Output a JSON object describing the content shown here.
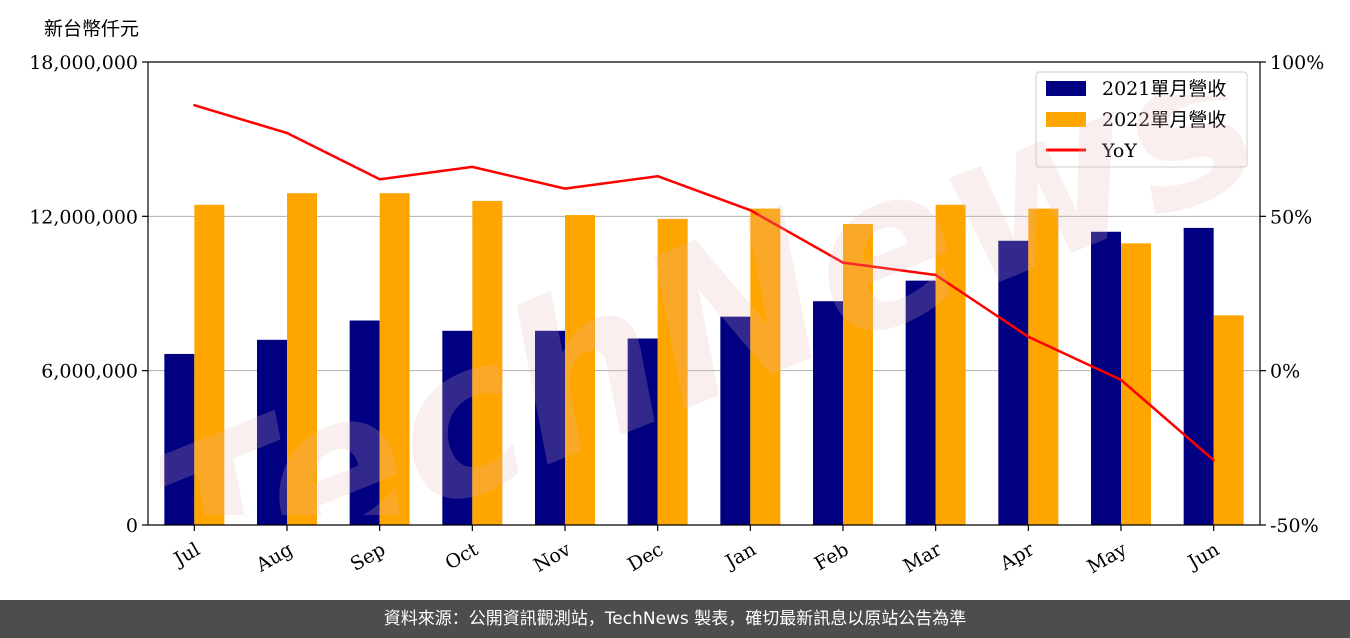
{
  "unit_label": "新台幣仟元",
  "watermark_text": "TechNews",
  "footer": {
    "source_text": "資料來源：公開資訊觀測站，TechNews 製表，確切最新訊息以原站公告為準"
  },
  "colors": {
    "series_2021": "#000080",
    "series_2022": "#ffa500",
    "yoy": "#ff0000",
    "footer_bg": "#4d4d4d",
    "grid": "#b0b0b0"
  },
  "chart_data": {
    "type": "bar",
    "categories": [
      "Jul",
      "Aug",
      "Sep",
      "Oct",
      "Nov",
      "Dec",
      "Jan",
      "Feb",
      "Mar",
      "Apr",
      "May",
      "Jun"
    ],
    "series": [
      {
        "name": "2021單月營收",
        "kind": "bar",
        "axis": "left",
        "values": [
          6650000,
          7200000,
          7950000,
          7550000,
          7550000,
          7250000,
          8100000,
          8700000,
          9500000,
          11050000,
          11400000,
          11550000
        ]
      },
      {
        "name": "2022單月營收",
        "kind": "bar",
        "axis": "left",
        "values": [
          12450000,
          12900000,
          12900000,
          12600000,
          12050000,
          11900000,
          12300000,
          11700000,
          12450000,
          12300000,
          10950000,
          8150000
        ]
      },
      {
        "name": "YoY",
        "kind": "line",
        "axis": "right",
        "values": [
          86,
          77,
          62,
          66,
          59,
          63,
          52,
          35,
          31,
          11,
          -3,
          -29
        ]
      }
    ],
    "ylim_left": [
      0,
      18000000
    ],
    "yticks_left": [
      0,
      6000000,
      12000000,
      18000000
    ],
    "ytick_labels_left": [
      "0",
      "6,000,000",
      "12,000,000",
      "18,000,000"
    ],
    "ylim_right": [
      -50,
      100
    ],
    "yticks_right": [
      -50,
      0,
      50,
      100
    ],
    "ytick_labels_right": [
      "-50%",
      "0%",
      "50%",
      "100%"
    ],
    "grid": "horizontal",
    "legend_position": "top-right"
  }
}
